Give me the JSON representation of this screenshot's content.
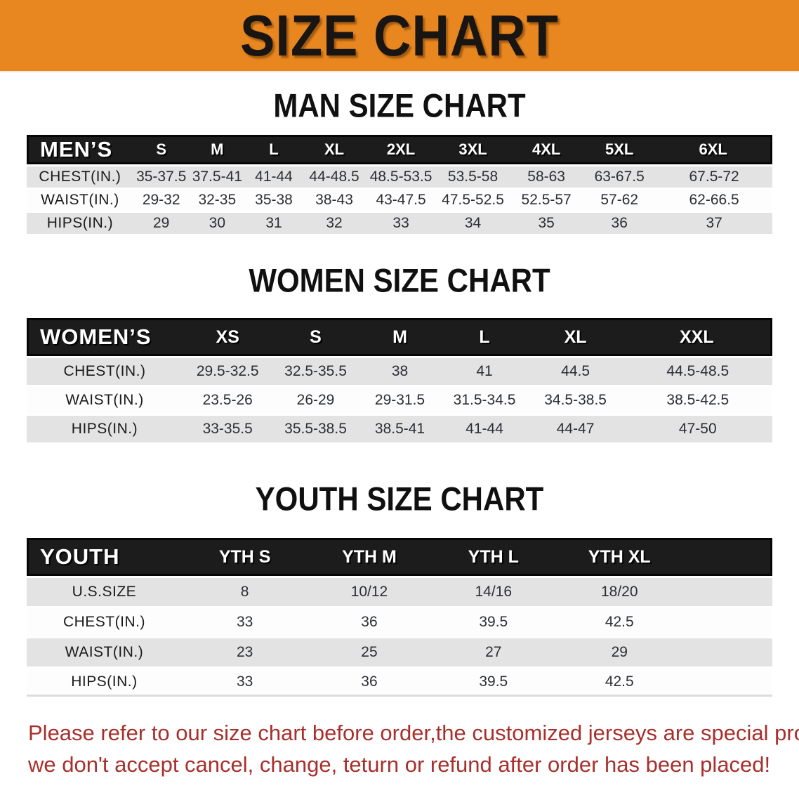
{
  "banner": {
    "title": "SIZE CHART"
  },
  "sections": [
    {
      "id": "men",
      "heading": "MAN SIZE CHART",
      "table": {
        "corner_label": "MEN’S",
        "columns": [
          "S",
          "M",
          "L",
          "XL",
          "2XL",
          "3XL",
          "4XL",
          "5XL",
          "6XL"
        ],
        "rows": [
          {
            "label": "CHEST(IN.)",
            "values": [
              "35-37.5",
              "37.5-41",
              "41-44",
              "44-48.5",
              "48.5-53.5",
              "53.5-58",
              "58-63",
              "63-67.5",
              "67.5-72"
            ]
          },
          {
            "label": "WAIST(IN.)",
            "values": [
              "29-32",
              "32-35",
              "35-38",
              "38-43",
              "43-47.5",
              "47.5-52.5",
              "52.5-57",
              "57-62",
              "62-66.5"
            ]
          },
          {
            "label": "HIPS(IN.)",
            "values": [
              "29",
              "30",
              "31",
              "32",
              "33",
              "34",
              "35",
              "36",
              "37"
            ]
          }
        ]
      }
    },
    {
      "id": "women",
      "heading": "WOMEN SIZE CHART",
      "table": {
        "corner_label": "WOMEN’S",
        "columns": [
          "XS",
          "S",
          "M",
          "L",
          "XL",
          "XXL"
        ],
        "rows": [
          {
            "label": "CHEST(IN.)",
            "values": [
              "29.5-32.5",
              "32.5-35.5",
              "38",
              "41",
              "44.5",
              "44.5-48.5"
            ]
          },
          {
            "label": "WAIST(IN.)",
            "values": [
              "23.5-26",
              "26-29",
              "29-31.5",
              "31.5-34.5",
              "34.5-38.5",
              "38.5-42.5"
            ]
          },
          {
            "label": "HIPS(IN.)",
            "values": [
              "33-35.5",
              "35.5-38.5",
              "38.5-41",
              "41-44",
              "44-47",
              "47-50"
            ]
          }
        ]
      }
    },
    {
      "id": "youth",
      "heading": "YOUTH SIZE CHART",
      "table": {
        "corner_label": "YOUTH",
        "columns": [
          "YTH S",
          "YTH M",
          "YTH L",
          "YTH XL"
        ],
        "rows": [
          {
            "label": "U.S.SIZE",
            "values": [
              "8",
              "10/12",
              "14/16",
              "18/20"
            ]
          },
          {
            "label": "CHEST(IN.)",
            "values": [
              "33",
              "36",
              "39.5",
              "42.5"
            ]
          },
          {
            "label": "WAIST(IN.)",
            "values": [
              "23",
              "25",
              "27",
              "29"
            ]
          },
          {
            "label": "HIPS(IN.)",
            "values": [
              "33",
              "36",
              "39.5",
              "42.5"
            ]
          }
        ]
      }
    }
  ],
  "footer": {
    "lines": [
      "Please refer to our size chart before order,the customized jerseys are special products,",
      "we don't accept cancel, change, teturn or refund after order has been placed!"
    ]
  },
  "colors": {
    "banner_bg": "#e8861f",
    "banner_text": "#181512",
    "header_bar_bg": "#1c1c1c",
    "header_bar_text": "#ffffff",
    "row_alt_bg": "#e3e3e3",
    "row_base_bg": "#fdfdfd",
    "value_text": "#2b2e33",
    "notice_text": "#a82f2b"
  }
}
